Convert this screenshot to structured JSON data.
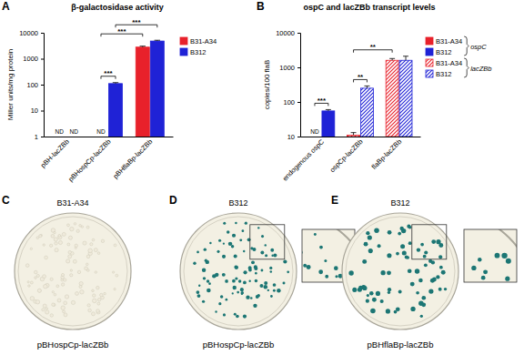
{
  "chart_data": [
    {
      "type": "bar",
      "panel": "A",
      "title": "β-galactosidase activity",
      "y_label": "Miller units/mg protein",
      "categories": [
        "pBH-lacZBb",
        "pBHospCp-lacZBb",
        "pBHflaBp-lacZBb"
      ],
      "series": [
        {
          "name": "B31-A34",
          "color": "#e8212b",
          "line_style": "solid",
          "values": [
            null,
            null,
            2800
          ],
          "errors": [
            null,
            null,
            250
          ],
          "value_labels": [
            "ND",
            "ND",
            null
          ]
        },
        {
          "name": "B312",
          "color": "#1f22d6",
          "line_style": "solid",
          "values": [
            null,
            110,
            4800
          ],
          "errors": [
            null,
            10,
            350
          ],
          "value_labels": [
            "ND",
            null,
            null
          ]
        }
      ],
      "log": "y",
      "ylim": [
        1,
        10000
      ],
      "yticks": [
        1,
        10,
        100,
        1000,
        10000
      ],
      "legend": "right",
      "annotations": [
        {
          "text": "***",
          "from": {
            "category": "pBHospCp-lacZBb",
            "series": "B31-A34"
          },
          "to": {
            "category": "pBHospCp-lacZBb",
            "series": "B312"
          }
        },
        {
          "text": "***",
          "from": {
            "category": "pBHospCp-lacZBb",
            "series": "B31-A34"
          },
          "to": {
            "category": "pBHflaBp-lacZBb",
            "series": "B31-A34"
          }
        },
        {
          "text": "***",
          "from": {
            "category": "pBHospCp-lacZBb",
            "series": "B312"
          },
          "to": {
            "category": "pBHflaBp-lacZBb",
            "series": "B312"
          }
        }
      ]
    },
    {
      "type": "bar",
      "panel": "B",
      "title": "ospC and lacZBb transcript levels",
      "y_label": "copies/100 flaB",
      "categories": [
        "endogenous ospC",
        "ospCp-lacZBb",
        "flaBp-lacZBb"
      ],
      "series": [
        {
          "name": "B31-A34",
          "group": "ospC",
          "color": "#e8212b",
          "line_style": "solid",
          "values": [
            null,
            null,
            null
          ],
          "errors": [
            null,
            null,
            null
          ],
          "value_labels": [
            "ND",
            null,
            null
          ]
        },
        {
          "name": "B312",
          "group": "ospC",
          "color": "#1f22d6",
          "line_style": "solid",
          "values": [
            55,
            null,
            null
          ],
          "errors": [
            5,
            null,
            null
          ]
        },
        {
          "name": "B31-A34",
          "group": "lacZBb",
          "color": "#e8212b",
          "line_style": "hatched",
          "values": [
            null,
            11,
            1600
          ],
          "errors": [
            null,
            2,
            200
          ]
        },
        {
          "name": "B312",
          "group": "lacZBb",
          "color": "#1f22d6",
          "line_style": "hatched",
          "values": [
            null,
            250,
            1600
          ],
          "errors": [
            null,
            40,
            500
          ]
        }
      ],
      "log": "y",
      "ylim": [
        10,
        10000
      ],
      "yticks": [
        10,
        100,
        1000,
        10000
      ],
      "legend": "right",
      "annotations": [
        {
          "text": "***",
          "from": {
            "category": "endogenous ospC",
            "series": "B31-A34"
          },
          "to": {
            "category": "endogenous ospC",
            "series": "B312"
          }
        },
        {
          "text": "**",
          "from": {
            "category": "ospCp-lacZBb",
            "series": "B31-A34"
          },
          "to": {
            "category": "ospCp-lacZBb",
            "series": "B312"
          }
        },
        {
          "text": "**",
          "from": {
            "category": "ospCp-lacZBb",
            "series": "B31-A34"
          },
          "to": {
            "category": "flaBp-lacZBb",
            "series": "B31-A34"
          }
        }
      ]
    }
  ],
  "panels": [
    {
      "letter": "C",
      "strain": "B31-A34",
      "caption": "pBHospCp-lacZBb",
      "colony_color": "#efeadb",
      "zoom": false
    },
    {
      "letter": "D",
      "strain": "B312",
      "caption": "pBHospCp-lacZBb",
      "colony_color": "#1c7674",
      "zoom": true
    },
    {
      "letter": "E",
      "strain": "B312",
      "caption": "pBHflaBp-lacZBb",
      "colony_color": "#1c7674",
      "zoom": true
    }
  ]
}
